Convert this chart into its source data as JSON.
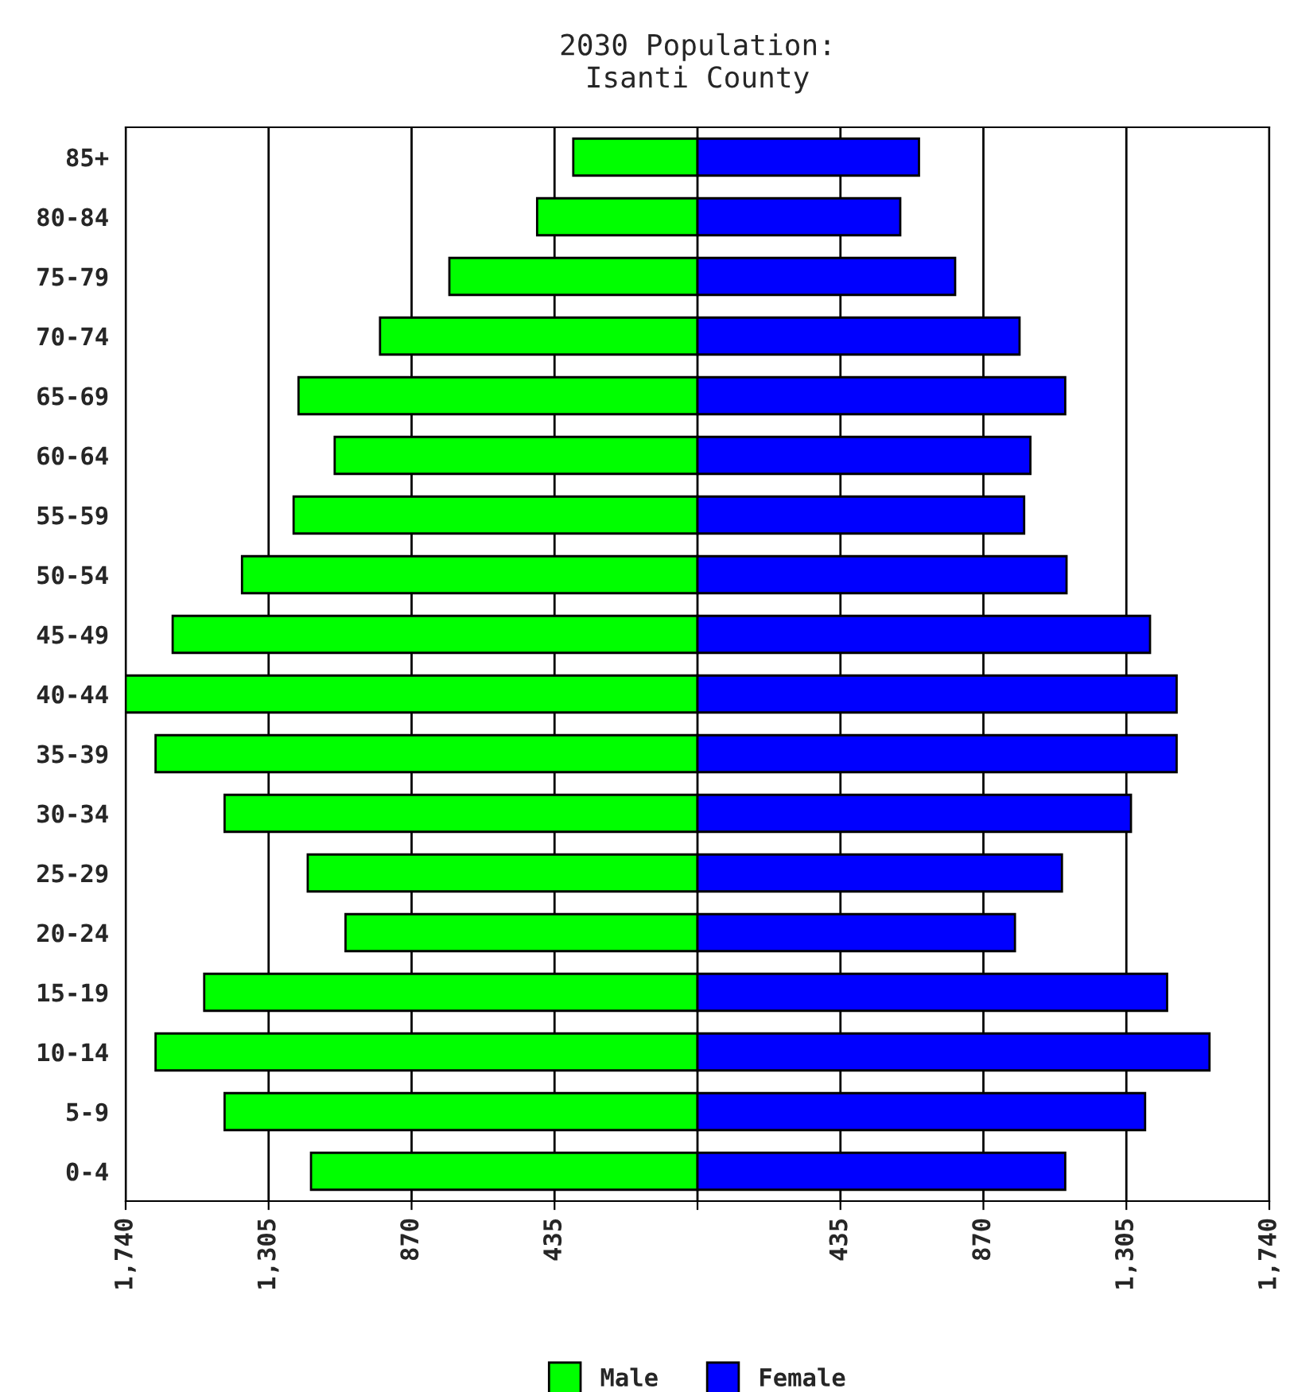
{
  "chart_data": {
    "type": "bar",
    "orientation": "horizontal",
    "stacked": true,
    "title": "2030 Population:\nIsanti County",
    "categories": [
      "85+",
      "80-84",
      "75-79",
      "70-74",
      "65-69",
      "60-64",
      "55-59",
      "50-54",
      "45-49",
      "40-44",
      "35-39",
      "30-34",
      "25-29",
      "20-24",
      "15-19",
      "10-14",
      "5-9",
      "0-4"
    ],
    "series": [
      {
        "name": "Male",
        "color": "#00ff00",
        "values": [
          -378,
          -488,
          -755,
          -966,
          -1214,
          -1104,
          -1229,
          -1386,
          -1597,
          -1740,
          -1649,
          -1439,
          -1186,
          -1071,
          -1501,
          -1649,
          -1439,
          -1176
        ]
      },
      {
        "name": "Female",
        "color": "#0000ff",
        "values": [
          674,
          617,
          784,
          980,
          1119,
          1013,
          994,
          1123,
          1377,
          1458,
          1458,
          1319,
          1109,
          966,
          1429,
          1558,
          1362,
          1119
        ]
      }
    ],
    "xlim": [
      -1740,
      1740
    ],
    "xticks": [
      {
        "value": -1740,
        "label": "1,740"
      },
      {
        "value": -1305,
        "label": "1,305"
      },
      {
        "value": -870,
        "label": "870"
      },
      {
        "value": -435,
        "label": "435"
      },
      {
        "value": 0,
        "label": null
      },
      {
        "value": 435,
        "label": "435"
      },
      {
        "value": 870,
        "label": "870"
      },
      {
        "value": 1305,
        "label": "1,305"
      },
      {
        "value": 1740,
        "label": "1,740"
      }
    ],
    "grid": "x",
    "legend": "bottom"
  }
}
